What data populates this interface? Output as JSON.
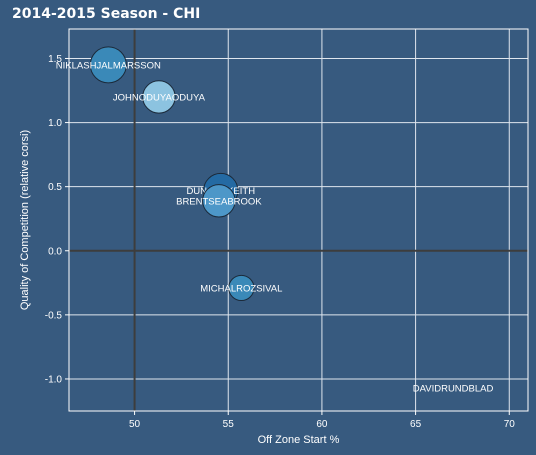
{
  "chart_data": {
    "type": "scatter",
    "title": "2014-2015 Season - CHI",
    "xlabel": "Off Zone Start %",
    "ylabel": "Quality of Competition (relative corsi)",
    "xlim": [
      46.5,
      71
    ],
    "ylim": [
      -1.25,
      1.73
    ],
    "xticks": [
      50,
      55,
      60,
      65,
      70
    ],
    "yticks": [
      -1.0,
      -0.5,
      0.0,
      0.5,
      1.0,
      1.5
    ],
    "xtick_labels": [
      "50",
      "55",
      "60",
      "65",
      "70"
    ],
    "ytick_labels": [
      "-1.0",
      "-0.5",
      "0.0",
      "0.5",
      "1.0",
      "1.5"
    ],
    "reference_lines": {
      "x": 50,
      "y": 0
    },
    "grid": true,
    "points": [
      {
        "label": "NIKLASHJALMARSSON",
        "x": 48.6,
        "y": 1.45,
        "size": 1.0,
        "color": "#3a89b8"
      },
      {
        "label": "JOHNODUYAODUYA",
        "x": 51.3,
        "y": 1.2,
        "size": 0.9,
        "color": "#8cc3e0"
      },
      {
        "label": "DUNCANKEITH",
        "x": 54.6,
        "y": 0.47,
        "size": 0.95,
        "color": "#246aa3"
      },
      {
        "label": "BRENTSEABROOK",
        "x": 54.5,
        "y": 0.39,
        "size": 0.9,
        "color": "#4d97c8"
      },
      {
        "label": "MICHALROZSIVAL",
        "x": 55.7,
        "y": -0.29,
        "size": 0.7,
        "color": "#3a89b8"
      },
      {
        "label": "DAVIDRUNDBLAD",
        "x": 67.0,
        "y": -1.07,
        "size": 0.0,
        "color": "#3a89b8"
      }
    ]
  }
}
